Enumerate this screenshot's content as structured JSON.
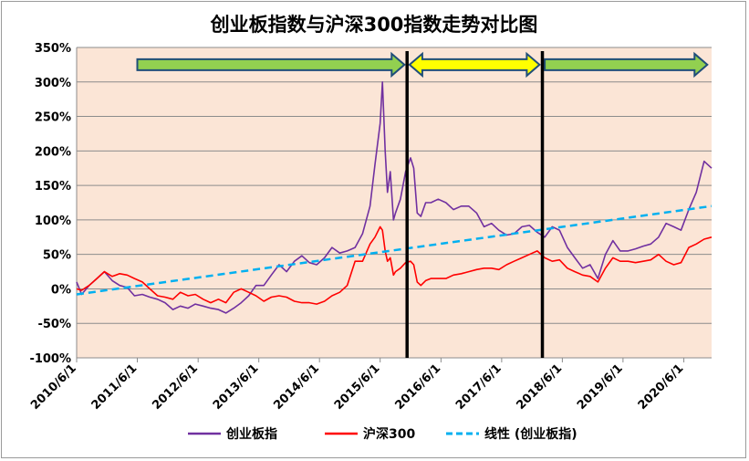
{
  "chart_data": {
    "type": "line",
    "title": "创业板指数与沪深300指数走势对比图",
    "xlabel": "",
    "ylabel": "",
    "ylim": [
      -1.0,
      3.5
    ],
    "yticks": [
      -1.0,
      -0.5,
      0.0,
      0.5,
      1.0,
      1.5,
      2.0,
      2.5,
      3.0,
      3.5
    ],
    "ytick_labels": [
      "-100%",
      "-50%",
      "0%",
      "50%",
      "100%",
      "150%",
      "200%",
      "250%",
      "300%",
      "350%"
    ],
    "xlim": [
      "2010-06-01",
      "2020-11-15"
    ],
    "xticks": [
      "2010-06-01",
      "2011-06-01",
      "2012-06-01",
      "2013-06-01",
      "2014-06-01",
      "2015-06-01",
      "2016-06-01",
      "2017-06-01",
      "2018-06-01",
      "2019-06-01",
      "2020-06-01"
    ],
    "xtick_labels": [
      "2010/6/1",
      "2011/6/1",
      "2012/6/1",
      "2013/6/1",
      "2014/6/1",
      "2015/6/1",
      "2016/6/1",
      "2017/6/1",
      "2018/6/1",
      "2019/6/1",
      "2020/6/1"
    ],
    "background_color": "#fbe5d6",
    "grid": "horizontal",
    "legend_position": "bottom",
    "series": [
      {
        "name": "创业板指",
        "color": "#7030a0",
        "x": [
          "2010-06-01",
          "2010-07-01",
          "2010-08-15",
          "2010-10-01",
          "2010-11-15",
          "2011-01-01",
          "2011-02-15",
          "2011-04-01",
          "2011-05-15",
          "2011-07-01",
          "2011-08-15",
          "2011-10-01",
          "2011-11-15",
          "2012-01-01",
          "2012-02-15",
          "2012-04-01",
          "2012-05-15",
          "2012-07-01",
          "2012-08-15",
          "2012-10-01",
          "2012-11-15",
          "2013-01-01",
          "2013-02-15",
          "2013-04-01",
          "2013-05-15",
          "2013-07-01",
          "2013-08-15",
          "2013-10-01",
          "2013-11-15",
          "2014-01-01",
          "2014-02-15",
          "2014-04-01",
          "2014-05-15",
          "2014-07-01",
          "2014-08-15",
          "2014-10-01",
          "2014-11-15",
          "2015-01-01",
          "2015-02-15",
          "2015-04-01",
          "2015-05-01",
          "2015-06-01",
          "2015-06-15",
          "2015-07-01",
          "2015-07-15",
          "2015-08-01",
          "2015-08-20",
          "2015-09-01",
          "2015-10-01",
          "2015-11-01",
          "2015-12-01",
          "2015-12-20",
          "2016-01-10",
          "2016-02-01",
          "2016-03-01",
          "2016-04-01",
          "2016-05-15",
          "2016-07-01",
          "2016-08-15",
          "2016-10-01",
          "2016-11-15",
          "2017-01-01",
          "2017-02-15",
          "2017-04-01",
          "2017-05-15",
          "2017-07-01",
          "2017-08-15",
          "2017-10-01",
          "2017-11-15",
          "2018-01-01",
          "2018-02-15",
          "2018-04-01",
          "2018-05-15",
          "2018-07-01",
          "2018-08-15",
          "2018-10-01",
          "2018-11-15",
          "2019-01-01",
          "2019-02-15",
          "2019-04-01",
          "2019-05-15",
          "2019-07-01",
          "2019-08-15",
          "2019-10-01",
          "2019-11-15",
          "2020-01-01",
          "2020-02-15",
          "2020-04-01",
          "2020-05-15",
          "2020-07-01",
          "2020-08-15",
          "2020-10-01",
          "2020-11-15"
        ],
        "values": [
          0.1,
          -0.08,
          0.05,
          0.15,
          0.25,
          0.12,
          0.05,
          0.02,
          -0.1,
          -0.08,
          -0.12,
          -0.15,
          -0.2,
          -0.3,
          -0.25,
          -0.28,
          -0.22,
          -0.25,
          -0.28,
          -0.3,
          -0.35,
          -0.28,
          -0.2,
          -0.1,
          0.05,
          0.05,
          0.2,
          0.35,
          0.25,
          0.4,
          0.48,
          0.38,
          0.35,
          0.45,
          0.6,
          0.52,
          0.55,
          0.6,
          0.8,
          1.2,
          1.8,
          2.4,
          3.0,
          2.0,
          1.4,
          1.7,
          1.0,
          1.1,
          1.3,
          1.7,
          1.9,
          1.75,
          1.1,
          1.05,
          1.25,
          1.25,
          1.3,
          1.25,
          1.15,
          1.2,
          1.2,
          1.1,
          0.9,
          0.95,
          0.85,
          0.78,
          0.8,
          0.9,
          0.92,
          0.82,
          0.75,
          0.9,
          0.85,
          0.6,
          0.45,
          0.3,
          0.35,
          0.15,
          0.5,
          0.7,
          0.55,
          0.55,
          0.58,
          0.62,
          0.65,
          0.75,
          0.95,
          0.9,
          0.85,
          1.15,
          1.4,
          1.85,
          1.75
        ]
      },
      {
        "name": "沪深300",
        "color": "#ff0000",
        "x": [
          "2010-06-01",
          "2010-07-01",
          "2010-08-15",
          "2010-10-01",
          "2010-11-15",
          "2011-01-01",
          "2011-02-15",
          "2011-04-01",
          "2011-05-15",
          "2011-07-01",
          "2011-08-15",
          "2011-10-01",
          "2011-11-15",
          "2012-01-01",
          "2012-02-15",
          "2012-04-01",
          "2012-05-15",
          "2012-07-01",
          "2012-08-15",
          "2012-10-01",
          "2012-11-15",
          "2013-01-01",
          "2013-02-15",
          "2013-04-01",
          "2013-05-15",
          "2013-07-01",
          "2013-08-15",
          "2013-10-01",
          "2013-11-15",
          "2014-01-01",
          "2014-02-15",
          "2014-04-01",
          "2014-05-15",
          "2014-07-01",
          "2014-08-15",
          "2014-10-01",
          "2014-11-15",
          "2015-01-01",
          "2015-02-15",
          "2015-04-01",
          "2015-05-01",
          "2015-06-01",
          "2015-06-15",
          "2015-07-01",
          "2015-07-15",
          "2015-08-01",
          "2015-08-20",
          "2015-09-01",
          "2015-10-01",
          "2015-11-01",
          "2015-12-01",
          "2015-12-20",
          "2016-01-10",
          "2016-02-01",
          "2016-03-01",
          "2016-04-01",
          "2016-05-15",
          "2016-07-01",
          "2016-08-15",
          "2016-10-01",
          "2016-11-15",
          "2017-01-01",
          "2017-02-15",
          "2017-04-01",
          "2017-05-15",
          "2017-07-01",
          "2017-08-15",
          "2017-10-01",
          "2017-11-15",
          "2018-01-01",
          "2018-02-15",
          "2018-04-01",
          "2018-05-15",
          "2018-07-01",
          "2018-08-15",
          "2018-10-01",
          "2018-11-15",
          "2019-01-01",
          "2019-02-15",
          "2019-04-01",
          "2019-05-15",
          "2019-07-01",
          "2019-08-15",
          "2019-10-01",
          "2019-11-15",
          "2020-01-01",
          "2020-02-15",
          "2020-04-01",
          "2020-05-15",
          "2020-07-01",
          "2020-08-15",
          "2020-10-01",
          "2020-11-15"
        ],
        "values": [
          0.0,
          -0.02,
          0.05,
          0.15,
          0.25,
          0.18,
          0.22,
          0.2,
          0.15,
          0.1,
          0.0,
          -0.1,
          -0.12,
          -0.15,
          -0.05,
          -0.1,
          -0.08,
          -0.15,
          -0.2,
          -0.15,
          -0.2,
          -0.05,
          0.0,
          -0.05,
          -0.1,
          -0.18,
          -0.12,
          -0.1,
          -0.12,
          -0.18,
          -0.2,
          -0.2,
          -0.22,
          -0.18,
          -0.1,
          -0.05,
          0.05,
          0.4,
          0.4,
          0.65,
          0.75,
          0.9,
          0.85,
          0.55,
          0.4,
          0.45,
          0.2,
          0.25,
          0.3,
          0.38,
          0.4,
          0.35,
          0.1,
          0.05,
          0.12,
          0.15,
          0.15,
          0.15,
          0.2,
          0.22,
          0.25,
          0.28,
          0.3,
          0.3,
          0.28,
          0.35,
          0.4,
          0.45,
          0.5,
          0.55,
          0.45,
          0.4,
          0.42,
          0.3,
          0.25,
          0.2,
          0.18,
          0.1,
          0.3,
          0.45,
          0.4,
          0.4,
          0.38,
          0.4,
          0.42,
          0.5,
          0.4,
          0.35,
          0.38,
          0.6,
          0.65,
          0.72,
          0.75
        ]
      },
      {
        "name": "线性 (创业板指)",
        "color": "#00b0f0",
        "dashed": true,
        "x": [
          "2010-06-01",
          "2020-11-15"
        ],
        "values": [
          -0.08,
          1.2
        ]
      }
    ],
    "annotations": [
      {
        "type": "arrow",
        "shape": "right",
        "color": "#92d050",
        "x_start": "2011-06-01",
        "x_end": "2015-10-25",
        "y": 3.25
      },
      {
        "type": "arrow",
        "shape": "double",
        "color": "#ffff00",
        "x_start": "2015-11-25",
        "x_end": "2018-01-15",
        "y": 3.25
      },
      {
        "type": "arrow",
        "shape": "right",
        "color": "#92d050",
        "x_start": "2018-02-15",
        "x_end": "2020-10-20",
        "y": 3.25
      },
      {
        "type": "vline",
        "color": "#000000",
        "x": "2015-11-10"
      },
      {
        "type": "vline",
        "color": "#000000",
        "x": "2018-02-01"
      }
    ]
  }
}
